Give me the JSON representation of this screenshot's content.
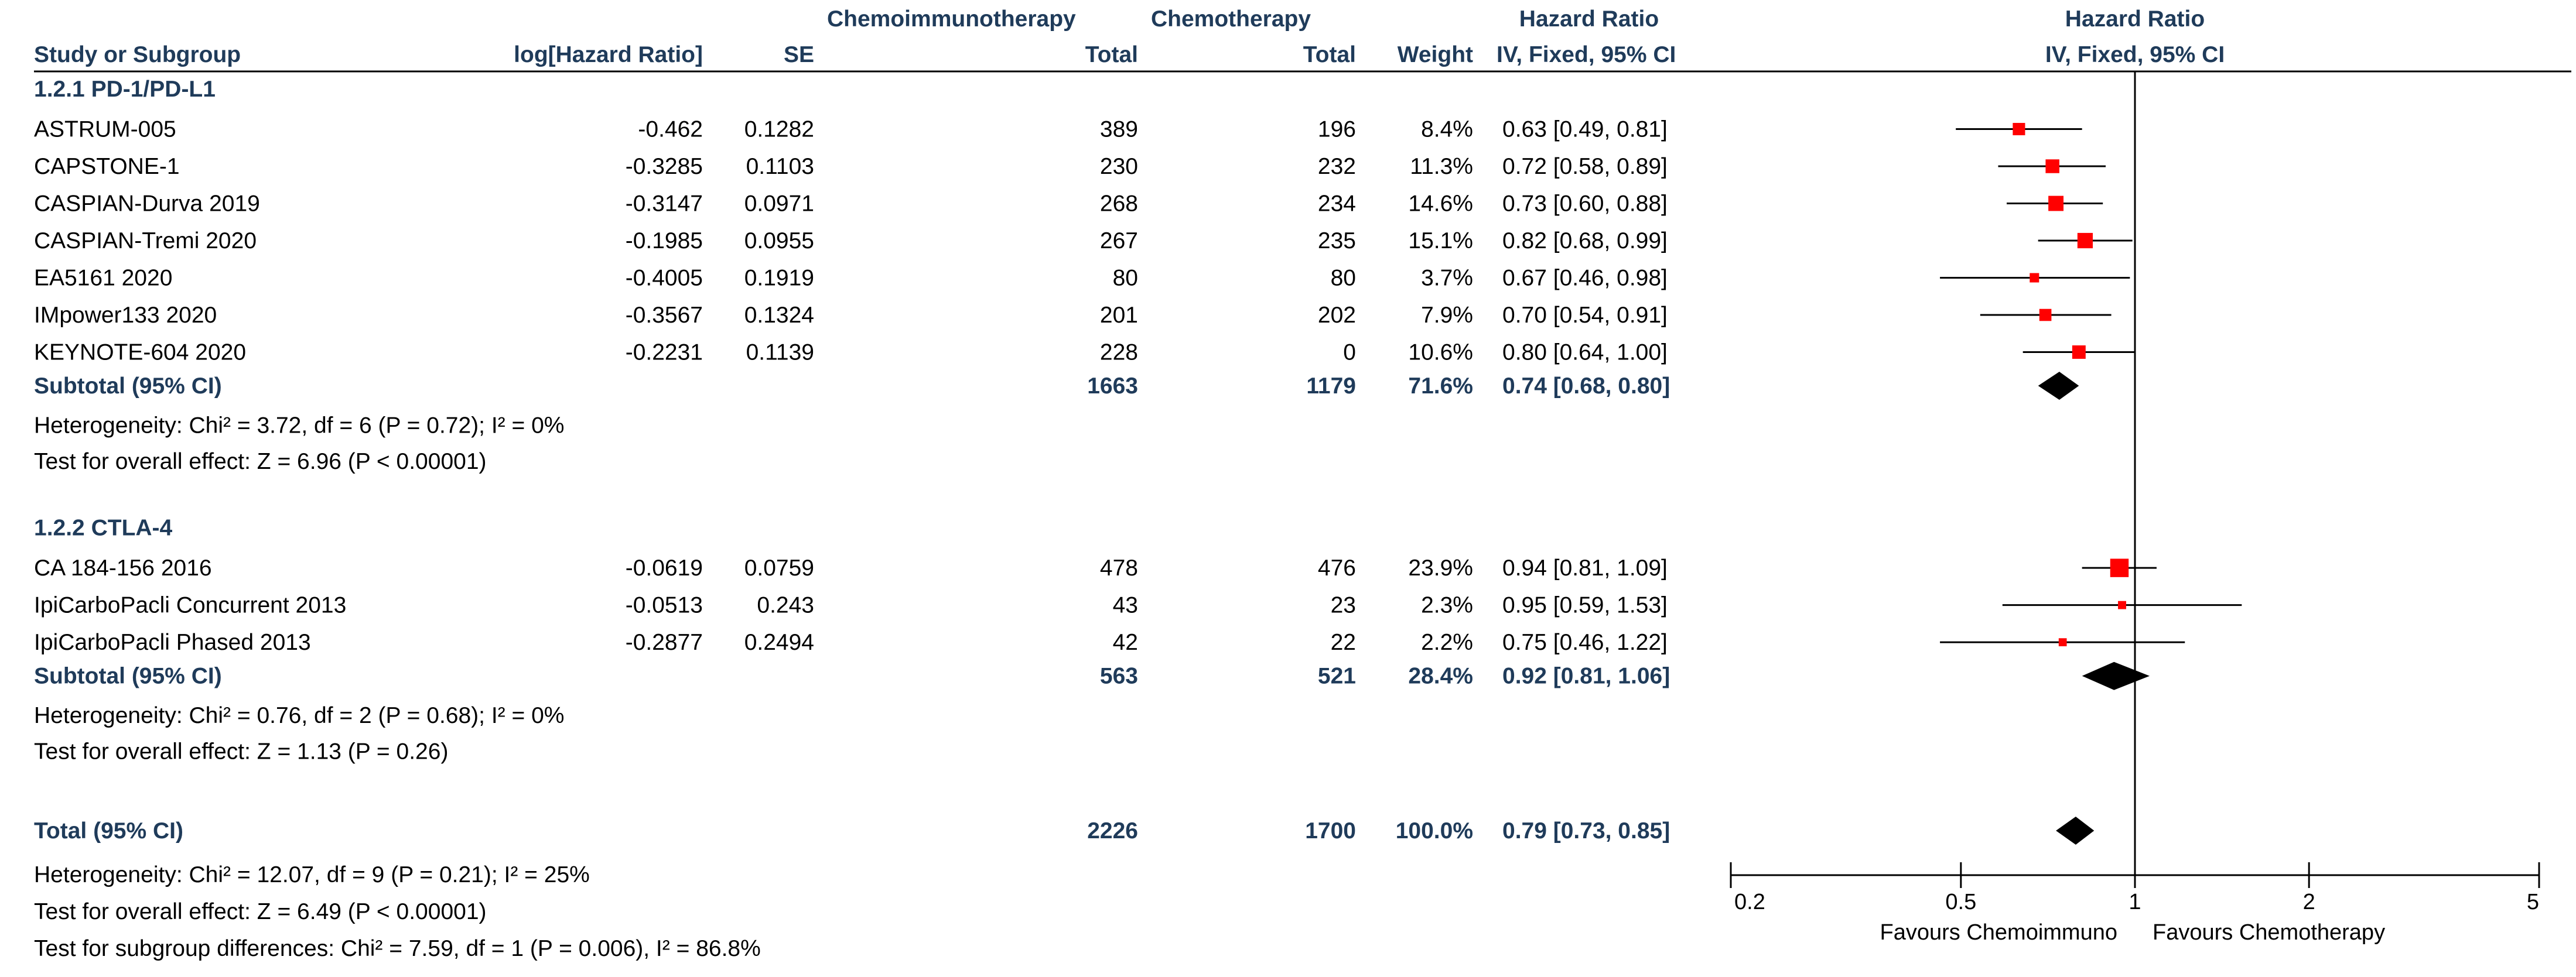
{
  "headers": {
    "study": "Study or Subgroup",
    "loghr": "log[Hazard Ratio]",
    "se": "SE",
    "exp_group": "Chemoimmunotherapy",
    "exp_total": "Total",
    "ctl_group": "Chemotherapy",
    "ctl_total": "Total",
    "weight": "Weight",
    "hr": "Hazard Ratio",
    "hr_method": "IV, Fixed, 95% CI",
    "plot_title": "Hazard Ratio",
    "plot_method": "IV, Fixed, 95% CI"
  },
  "chart_data": {
    "type": "forest",
    "scale": "log",
    "x_ticks": [
      "0.2",
      "0.5",
      "1",
      "2",
      "5"
    ],
    "x_tick_values": [
      0.2,
      0.5,
      1,
      2,
      5
    ],
    "xlim": [
      0.2,
      5
    ],
    "favours_left": "Favours Chemoimmuno",
    "favours_right": "Favours Chemotherapy",
    "subgroups": [
      {
        "label": "1.2.1 PD-1/PD-L1",
        "studies": [
          {
            "name": "ASTRUM-005",
            "loghr": "-0.462",
            "se": "0.1282",
            "exp_total": "389",
            "ctl_total": "196",
            "weight": "8.4%",
            "hr_text": "0.63 [0.49, 0.81]",
            "hr": 0.63,
            "lo": 0.49,
            "hi": 0.81,
            "w": 8.4
          },
          {
            "name": "CAPSTONE-1",
            "loghr": "-0.3285",
            "se": "0.1103",
            "exp_total": "230",
            "ctl_total": "232",
            "weight": "11.3%",
            "hr_text": "0.72 [0.58, 0.89]",
            "hr": 0.72,
            "lo": 0.58,
            "hi": 0.89,
            "w": 11.3
          },
          {
            "name": "CASPIAN-Durva 2019",
            "loghr": "-0.3147",
            "se": "0.0971",
            "exp_total": "268",
            "ctl_total": "234",
            "weight": "14.6%",
            "hr_text": "0.73 [0.60, 0.88]",
            "hr": 0.73,
            "lo": 0.6,
            "hi": 0.88,
            "w": 14.6
          },
          {
            "name": "CASPIAN-Tremi 2020",
            "loghr": "-0.1985",
            "se": "0.0955",
            "exp_total": "267",
            "ctl_total": "235",
            "weight": "15.1%",
            "hr_text": "0.82 [0.68, 0.99]",
            "hr": 0.82,
            "lo": 0.68,
            "hi": 0.99,
            "w": 15.1
          },
          {
            "name": "EA5161 2020",
            "loghr": "-0.4005",
            "se": "0.1919",
            "exp_total": "80",
            "ctl_total": "80",
            "weight": "3.7%",
            "hr_text": "0.67 [0.46, 0.98]",
            "hr": 0.67,
            "lo": 0.46,
            "hi": 0.98,
            "w": 3.7
          },
          {
            "name": "IMpower133 2020",
            "loghr": "-0.3567",
            "se": "0.1324",
            "exp_total": "201",
            "ctl_total": "202",
            "weight": "7.9%",
            "hr_text": "0.70 [0.54, 0.91]",
            "hr": 0.7,
            "lo": 0.54,
            "hi": 0.91,
            "w": 7.9
          },
          {
            "name": "KEYNOTE-604 2020",
            "loghr": "-0.2231",
            "se": "0.1139",
            "exp_total": "228",
            "ctl_total": "0",
            "weight": "10.6%",
            "hr_text": "0.80 [0.64, 1.00]",
            "hr": 0.8,
            "lo": 0.64,
            "hi": 1.0,
            "w": 10.6
          }
        ],
        "subtotal": {
          "label": "Subtotal (95% CI)",
          "exp_total": "1663",
          "ctl_total": "1179",
          "weight": "71.6%",
          "hr_text": "0.74 [0.68, 0.80]",
          "hr": 0.74,
          "lo": 0.68,
          "hi": 0.8
        },
        "heterogeneity": "Heterogeneity: Chi² = 3.72, df = 6 (P = 0.72); I² = 0%",
        "overall": "Test for overall effect: Z = 6.96 (P < 0.00001)"
      },
      {
        "label": "1.2.2 CTLA-4",
        "studies": [
          {
            "name": "CA 184-156 2016",
            "loghr": "-0.0619",
            "se": "0.0759",
            "exp_total": "478",
            "ctl_total": "476",
            "weight": "23.9%",
            "hr_text": "0.94 [0.81, 1.09]",
            "hr": 0.94,
            "lo": 0.81,
            "hi": 1.09,
            "w": 23.9
          },
          {
            "name": "IpiCarboPacli Concurrent 2013",
            "loghr": "-0.0513",
            "se": "0.243",
            "exp_total": "43",
            "ctl_total": "23",
            "weight": "2.3%",
            "hr_text": "0.95 [0.59, 1.53]",
            "hr": 0.95,
            "lo": 0.59,
            "hi": 1.53,
            "w": 2.3
          },
          {
            "name": "IpiCarboPacli Phased 2013",
            "loghr": "-0.2877",
            "se": "0.2494",
            "exp_total": "42",
            "ctl_total": "22",
            "weight": "2.2%",
            "hr_text": "0.75 [0.46, 1.22]",
            "hr": 0.75,
            "lo": 0.46,
            "hi": 1.22,
            "w": 2.2
          }
        ],
        "subtotal": {
          "label": "Subtotal (95% CI)",
          "exp_total": "563",
          "ctl_total": "521",
          "weight": "28.4%",
          "hr_text": "0.92 [0.81, 1.06]",
          "hr": 0.92,
          "lo": 0.81,
          "hi": 1.06
        },
        "heterogeneity": "Heterogeneity: Chi² = 0.76, df = 2 (P = 0.68); I² = 0%",
        "overall": "Test for overall effect: Z = 1.13 (P = 0.26)"
      }
    ],
    "total": {
      "label": "Total (95% CI)",
      "exp_total": "2226",
      "ctl_total": "1700",
      "weight": "100.0%",
      "hr_text": "0.79 [0.73, 0.85]",
      "hr": 0.79,
      "lo": 0.73,
      "hi": 0.85
    },
    "footer": [
      "Heterogeneity: Chi² = 12.07, df = 9 (P = 0.21); I² = 25%",
      "Test for overall effect: Z = 6.49 (P < 0.00001)",
      "Test for subgroup differences: Chi² = 7.59, df = 1 (P = 0.006), I² = 86.8%"
    ],
    "colors": {
      "header": "#1f3b5a",
      "marker": "#ff0000",
      "diamond": "#000000",
      "line": "#000000"
    }
  }
}
